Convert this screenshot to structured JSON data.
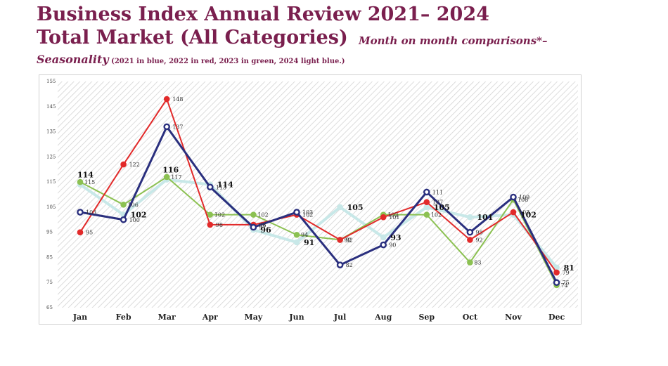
{
  "header": {
    "title": "Business Index Annual Review 2021– 2024",
    "subtitle": "Total Market (All Categories)",
    "subtitle_italic": "Month on month comparisons*–",
    "seasonality": "Seasonality",
    "note": " (2021 in blue, 2022 in red, 2023 in green, 2024 light blue.)"
  },
  "colors": {
    "s2021": "#2a2f7e",
    "s2022": "#e22a2a",
    "s2023": "#8cc152",
    "s2024": "#c8e8e8",
    "hatch": "#cfcfcf",
    "title": "#7a1f4e"
  },
  "chart_data": {
    "type": "line",
    "title": "Total Market (All Categories)",
    "xlabel": "",
    "ylabel": "",
    "ylim": [
      65,
      155
    ],
    "yticks": [
      "155",
      "145",
      "135",
      "125",
      "115",
      "105",
      "95",
      "85",
      "75",
      "65"
    ],
    "categories": [
      "Jan",
      "Feb",
      "Mar",
      "Apr",
      "May",
      "Jun",
      "Jul",
      "Aug",
      "Sep",
      "Oct",
      "Nov",
      "Dec"
    ],
    "series": [
      {
        "name": "2021",
        "color": "#2a2f7e",
        "hollow": true,
        "values": [
          103,
          100,
          137,
          113,
          97,
          103,
          82,
          90,
          111,
          95,
          109,
          75
        ],
        "labels": [
          "103",
          "100",
          "137",
          "113",
          "97",
          "103",
          "82",
          "90",
          "111",
          "95",
          "109",
          "75"
        ]
      },
      {
        "name": "2022",
        "color": "#e22a2a",
        "hollow": false,
        "values": [
          95,
          122,
          148,
          98,
          98,
          102,
          92,
          101,
          107,
          92,
          103,
          79
        ],
        "labels": [
          "95",
          "122",
          "148",
          "98",
          "98",
          "102",
          "92",
          "101",
          "107",
          "92",
          "103",
          "79"
        ]
      },
      {
        "name": "2023",
        "color": "#8cc152",
        "hollow": false,
        "values": [
          115,
          106,
          117,
          102,
          102,
          94,
          92,
          102,
          102,
          83,
          108,
          74
        ],
        "labels": [
          "115",
          "106",
          "117",
          "102",
          "102",
          "94",
          "92",
          "102",
          "102",
          "83",
          "108",
          "74"
        ]
      },
      {
        "name": "2024",
        "color": "#c8e8e8",
        "hollow": false,
        "values": [
          114,
          102,
          116,
          114,
          96,
          91,
          105,
          93,
          105,
          101,
          102,
          81
        ],
        "labels": [
          "114",
          "102",
          "116",
          "114",
          "96",
          "91",
          "105",
          "93",
          "105",
          "101",
          "102",
          "81"
        ]
      }
    ]
  }
}
